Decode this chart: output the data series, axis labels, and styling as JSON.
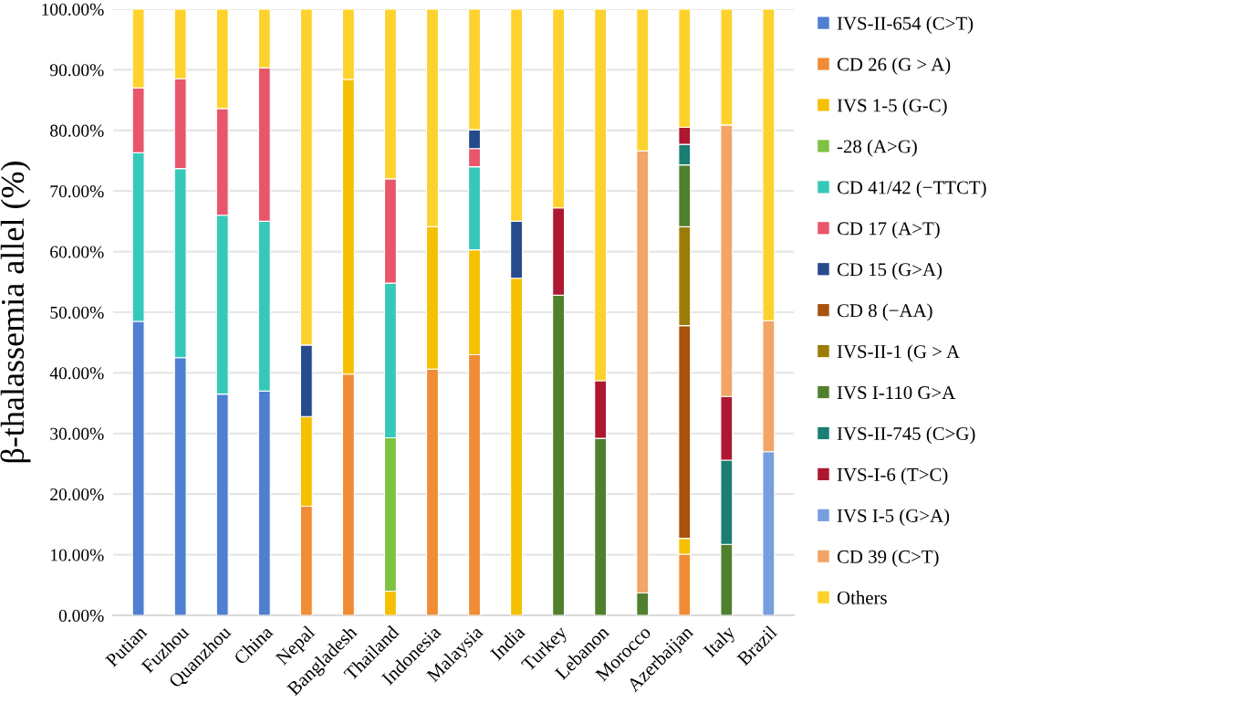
{
  "chart_data": {
    "type": "bar",
    "stacked": true,
    "ylabel": "β-thalassemia allel (%)",
    "categories": [
      "Putian",
      "Fuzhou",
      "Quanzhou",
      "China",
      "Nepal",
      "Bangladesh",
      "Thailand",
      "Indonesia",
      "Malaysia",
      "India",
      "Turkey",
      "Lebanon",
      "Morocco",
      "Azerbaijan",
      "Italy",
      "Brazil"
    ],
    "series": [
      {
        "name": "IVS-II-654 (C>T)",
        "color": "#4e7fd0",
        "values": [
          48.5,
          42.5,
          36.5,
          37,
          null,
          null,
          null,
          null,
          null,
          null,
          null,
          null,
          null,
          null,
          null,
          null
        ]
      },
      {
        "name": "CD 26 (G > A)",
        "color": "#f08c35",
        "values": [
          null,
          null,
          null,
          null,
          18,
          39.8,
          null,
          40.6,
          43,
          null,
          null,
          null,
          null,
          10.1,
          null,
          null
        ]
      },
      {
        "name": "IVS 1-5 (G-C)",
        "color": "#f5c000",
        "values": [
          null,
          null,
          null,
          null,
          14.8,
          48.6,
          4,
          23.5,
          17.3,
          55.6,
          null,
          null,
          null,
          2.6,
          null,
          null
        ]
      },
      {
        "name": "-28 (A>G)",
        "color": "#7dc242",
        "values": [
          null,
          null,
          null,
          null,
          null,
          null,
          25.3,
          null,
          null,
          null,
          null,
          null,
          null,
          null,
          null,
          null
        ]
      },
      {
        "name": "CD 41/42 (−TTCT)",
        "color": "#36c9b9",
        "values": [
          27.8,
          31.2,
          29.5,
          28,
          null,
          null,
          25.5,
          null,
          13.7,
          null,
          null,
          null,
          null,
          null,
          null,
          null
        ]
      },
      {
        "name": "CD 17 (A>T)",
        "color": "#e8566b",
        "values": [
          10.7,
          14.8,
          17.6,
          25.3,
          null,
          null,
          17.2,
          null,
          3,
          null,
          null,
          null,
          null,
          null,
          null,
          null
        ]
      },
      {
        "name": "CD 15 (G>A)",
        "color": "#274a8c",
        "values": [
          null,
          null,
          null,
          null,
          11.8,
          null,
          null,
          null,
          3.1,
          9.4,
          null,
          null,
          null,
          null,
          null,
          null
        ]
      },
      {
        "name": "CD 8 (−AA)",
        "color": "#a8520d",
        "values": [
          null,
          null,
          null,
          null,
          null,
          null,
          null,
          null,
          null,
          null,
          null,
          null,
          null,
          35.1,
          null,
          null
        ]
      },
      {
        "name": "IVS-II-1 (G > A",
        "color": "#9c7c08",
        "values": [
          null,
          null,
          null,
          null,
          null,
          null,
          null,
          null,
          null,
          null,
          null,
          null,
          null,
          16.3,
          null,
          null
        ]
      },
      {
        "name": "IVS I-110 G>A",
        "color": "#507f2e",
        "values": [
          null,
          null,
          null,
          null,
          null,
          null,
          null,
          null,
          null,
          null,
          52.8,
          29.2,
          3.7,
          10.2,
          11.7,
          null
        ]
      },
      {
        "name": "IVS-II-745 (C>G)",
        "color": "#1b7e72",
        "values": [
          null,
          null,
          null,
          null,
          null,
          null,
          null,
          null,
          null,
          null,
          null,
          null,
          null,
          3.4,
          13.9,
          null
        ]
      },
      {
        "name": "IVS-I-6 (T>C)",
        "color": "#ad1830",
        "values": [
          null,
          null,
          null,
          null,
          null,
          null,
          null,
          null,
          null,
          null,
          14.4,
          9.5,
          null,
          2.8,
          10.5,
          null
        ]
      },
      {
        "name": "IVS I-5 (G>A)",
        "color": "#789ede",
        "values": [
          null,
          null,
          null,
          null,
          null,
          null,
          null,
          null,
          null,
          null,
          null,
          null,
          null,
          null,
          null,
          27
        ]
      },
      {
        "name": "CD 39 (C>T)",
        "color": "#f2a566",
        "values": [
          null,
          null,
          null,
          null,
          null,
          null,
          null,
          null,
          null,
          null,
          null,
          null,
          72.9,
          null,
          44.8,
          21.6
        ]
      },
      {
        "name": "Others",
        "color": "#fdd22c",
        "values": [
          13,
          11.5,
          16.4,
          9.7,
          55.4,
          11.6,
          28,
          35.9,
          19.9,
          35,
          32.8,
          61.3,
          23.4,
          19.5,
          19.1,
          51.4
        ]
      }
    ],
    "ylim": [
      0,
      100
    ],
    "yticks": [
      {
        "value": 0,
        "label": "0.00%"
      },
      {
        "value": 10,
        "label": "10.00%"
      },
      {
        "value": 20,
        "label": "20.00%"
      },
      {
        "value": 30,
        "label": "30.00%"
      },
      {
        "value": 40,
        "label": "40.00%"
      },
      {
        "value": 50,
        "label": "50.00%"
      },
      {
        "value": 60,
        "label": "60.00%"
      },
      {
        "value": 70,
        "label": "70.00%"
      },
      {
        "value": 80,
        "label": "80.00%"
      },
      {
        "value": 90,
        "label": "90.00%"
      },
      {
        "value": 100,
        "label": "100.00%"
      }
    ],
    "grid": "y",
    "legend": "right"
  }
}
